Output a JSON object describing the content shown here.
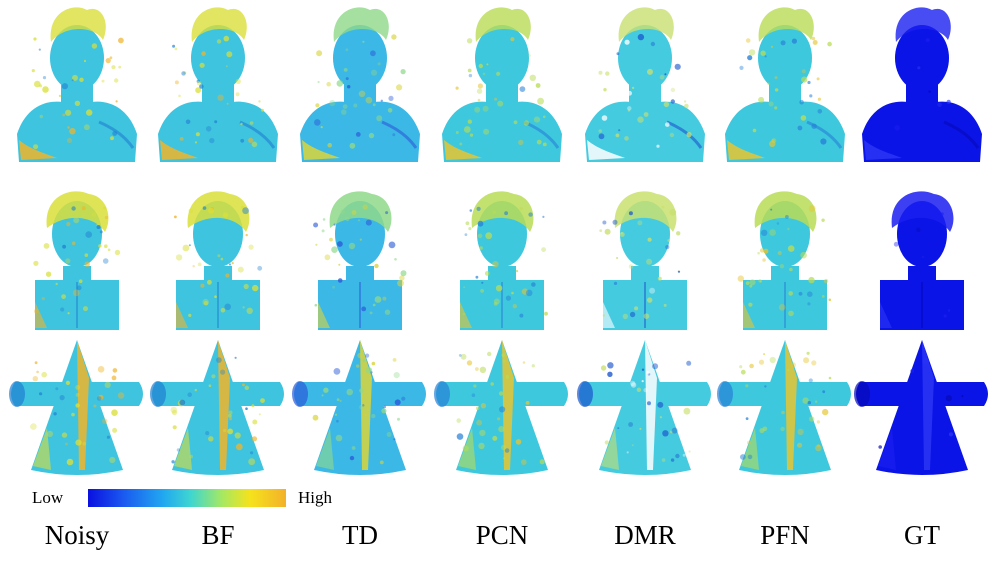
{
  "colorbar": {
    "low": "Low",
    "high": "High",
    "colors": [
      "#0a10e0",
      "#1a5af0",
      "#21a8f0",
      "#3fd6d0",
      "#a8e860",
      "#f6e21c",
      "#f3b12a"
    ]
  },
  "columns": [
    {
      "label": "Noisy",
      "palette": "noisy"
    },
    {
      "label": "BF",
      "palette": "noisy"
    },
    {
      "label": "TD",
      "palette": "smooth"
    },
    {
      "label": "PCN",
      "palette": "mid"
    },
    {
      "label": "DMR",
      "palette": "speckle"
    },
    {
      "label": "PFN",
      "palette": "mid"
    },
    {
      "label": "GT",
      "palette": "gt"
    }
  ],
  "rows": [
    {
      "model": "boy-bust"
    },
    {
      "model": "david-bust"
    },
    {
      "model": "cone-with-arms"
    }
  ],
  "palettes": {
    "noisy": {
      "base": "#3fc4e0",
      "patch": "#d9df3a",
      "accent": "#f0b52a",
      "dark": "#1f7fd0"
    },
    "smooth": {
      "base": "#3cb8e6",
      "patch": "#8fd88a",
      "accent": "#d9d43a",
      "dark": "#2a5ad8"
    },
    "mid": {
      "base": "#3ec8de",
      "patch": "#b9dc55",
      "accent": "#e6c530",
      "dark": "#2680d6"
    },
    "speckle": {
      "base": "#45cbe0",
      "patch": "#c9e070",
      "accent": "#ffffff",
      "dark": "#1a55cc"
    },
    "gt": {
      "base": "#0a14e6",
      "patch": "#1a1ff0",
      "accent": "#2b35f5",
      "dark": "#0508b8"
    }
  }
}
